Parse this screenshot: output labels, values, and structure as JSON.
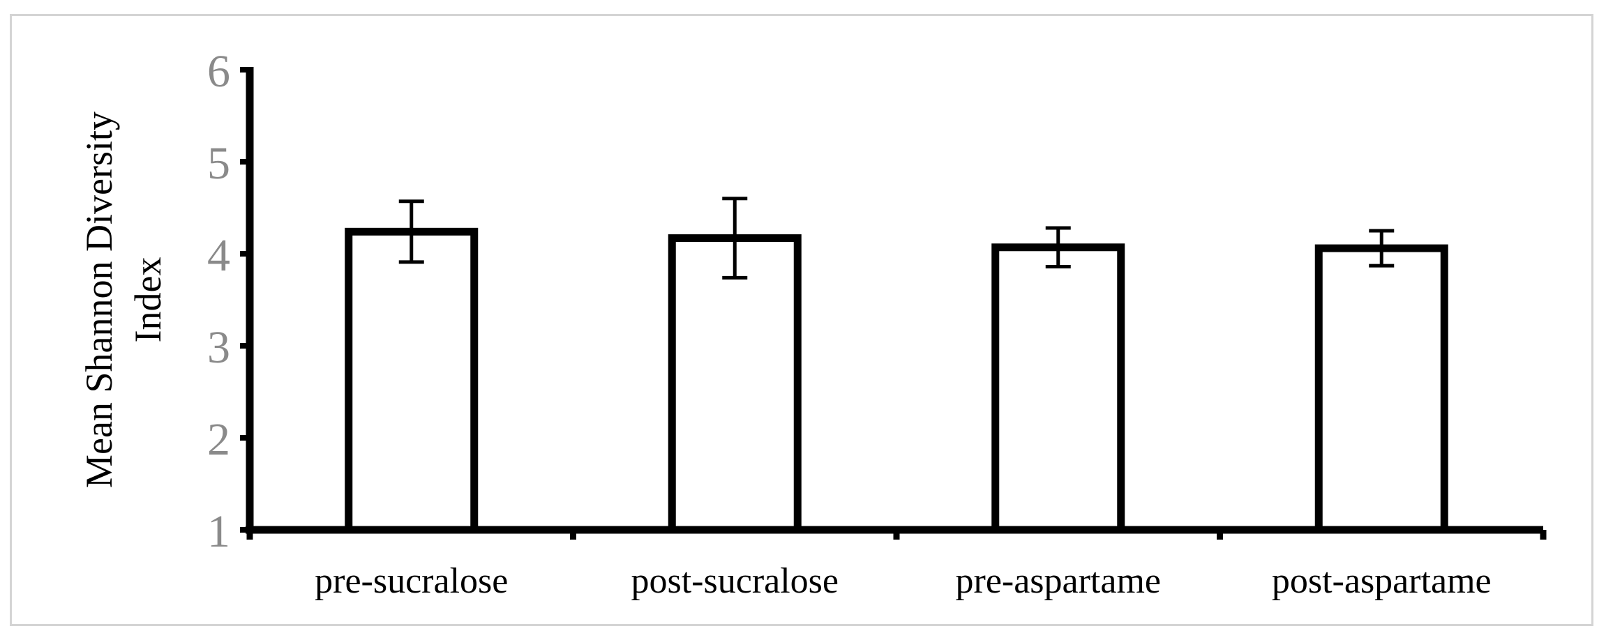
{
  "chart_data": {
    "type": "bar",
    "categories": [
      "pre-sucralose",
      "post-sucralose",
      "pre-aspartame",
      "post-aspartame"
    ],
    "values": [
      4.24,
      4.17,
      4.07,
      4.06
    ],
    "error": [
      0.33,
      0.43,
      0.21,
      0.19
    ],
    "title": "",
    "xlabel": "",
    "ylabel_lines": [
      "Mean Shannon Diversity",
      "Index"
    ],
    "ylim": [
      1,
      6
    ],
    "yticks": [
      "1",
      "2",
      "3",
      "4",
      "5",
      "6"
    ],
    "grid": false,
    "legend": "none",
    "colors": {
      "bar_fill": "#ffffff",
      "bar_stroke": "#000000",
      "tick_label": "#8a8a8a",
      "frame": "#d4d4d4"
    }
  }
}
